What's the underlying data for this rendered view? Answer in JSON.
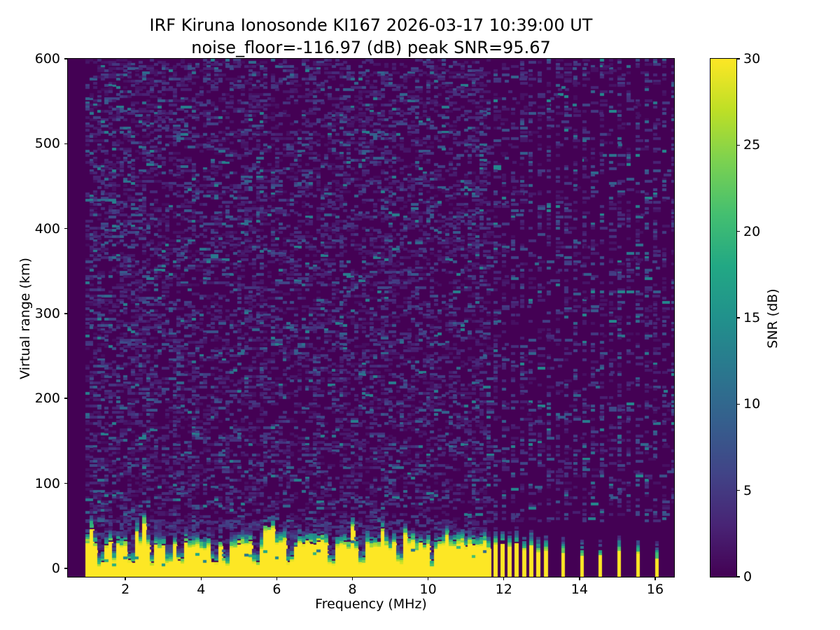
{
  "figure": {
    "title": "IRF Kiruna Ionosonde KI167 2026-03-17 10:39:00  UT",
    "subtitle": "noise_floor=-116.97 (dB) peak SNR=95.67"
  },
  "chart_data": {
    "type": "heatmap",
    "title": "IRF Kiruna Ionosonde KI167 2026-03-17 10:39:00  UT",
    "subtitle": "noise_floor=-116.97 (dB) peak SNR=95.67",
    "station": "KI167",
    "timestamp_ut": "2026-03-17 10:39:00",
    "noise_floor_db": -116.97,
    "peak_snr_db": 95.67,
    "xlabel": "Frequency (MHz)",
    "ylabel": "Virtual range (km)",
    "xlim": [
      0.48,
      16.5
    ],
    "ylim": [
      -10,
      600
    ],
    "xticks": [
      2,
      4,
      6,
      8,
      10,
      12,
      14,
      16
    ],
    "yticks": [
      0,
      100,
      200,
      300,
      400,
      500,
      600
    ],
    "grid": false,
    "colorbar": {
      "label": "SNR (dB)",
      "range": [
        0,
        30
      ],
      "ticks": [
        0,
        5,
        10,
        15,
        20,
        25,
        30
      ],
      "colormap": "viridis",
      "stops": [
        [
          0.0,
          "#440154"
        ],
        [
          0.1,
          "#482475"
        ],
        [
          0.2,
          "#414487"
        ],
        [
          0.3,
          "#355f8d"
        ],
        [
          0.4,
          "#2a788e"
        ],
        [
          0.5,
          "#21918c"
        ],
        [
          0.6,
          "#22a884"
        ],
        [
          0.7,
          "#44bf70"
        ],
        [
          0.8,
          "#7ad151"
        ],
        [
          0.9,
          "#bddf26"
        ],
        [
          1.0,
          "#fde725"
        ]
      ]
    },
    "heatmap": {
      "seed": 20260317,
      "freq_step_mhz": 0.1,
      "range_step_km": 2.5,
      "background_snr_db": 0,
      "blank_band_mhz": [
        0.48,
        0.95
      ],
      "continuous_sweep_mhz": [
        0.95,
        11.62
      ],
      "ground_echo": {
        "base_km": -10,
        "top_km_min": 22,
        "top_km_max": 32,
        "plume_top_km_max": 50,
        "snr_db": 30,
        "transition_km": 16
      },
      "band_notch_freqs_mhz": [
        1.3,
        1.65,
        2.1,
        2.65,
        3.1,
        3.4,
        4.3,
        4.6,
        5.4,
        6.3,
        7.4,
        8.2,
        9.2,
        10.05
      ],
      "cluster_stripe_freqs_mhz": [
        11.72,
        11.91,
        12.1,
        12.29,
        12.48,
        12.67,
        12.86,
        13.05
      ],
      "sparse_stripe_freqs_mhz": [
        13.52,
        14.02,
        14.51,
        15.01,
        15.5,
        16.0
      ],
      "sparse_noise_columns_mhz": {
        "start": 11.72,
        "step": 0.235,
        "end": 16.45
      },
      "noise_speckle": {
        "density": 0.28,
        "snr_low_db": 1,
        "snr_high_db": 13
      }
    }
  }
}
